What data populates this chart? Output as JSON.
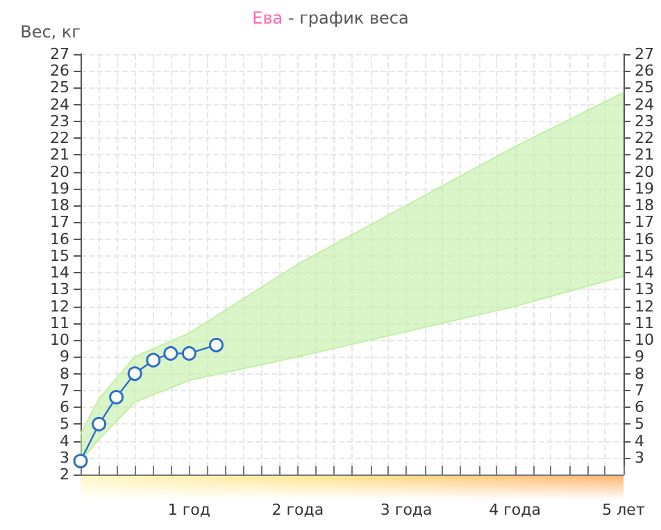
{
  "chart_data": {
    "type": "line",
    "title": "Ева - график веса",
    "ylabel": "Вес, кг",
    "xlim": [
      0,
      5
    ],
    "xticks": [
      {
        "value": 0,
        "label": null
      },
      {
        "value": 0.17,
        "label": null
      },
      {
        "value": 0.33,
        "label": null
      },
      {
        "value": 0.5,
        "label": null
      },
      {
        "value": 0.67,
        "label": null
      },
      {
        "value": 0.83,
        "label": null
      },
      {
        "value": 1,
        "label": "1 год"
      },
      {
        "value": 1.17,
        "label": null
      },
      {
        "value": 1.33,
        "label": null
      },
      {
        "value": 1.5,
        "label": null
      },
      {
        "value": 1.67,
        "label": null
      },
      {
        "value": 1.83,
        "label": null
      },
      {
        "value": 2,
        "label": "2 года"
      },
      {
        "value": 2.17,
        "label": null
      },
      {
        "value": 2.33,
        "label": null
      },
      {
        "value": 2.5,
        "label": null
      },
      {
        "value": 2.67,
        "label": null
      },
      {
        "value": 2.83,
        "label": null
      },
      {
        "value": 3,
        "label": "3 года"
      },
      {
        "value": 3.17,
        "label": null
      },
      {
        "value": 3.33,
        "label": null
      },
      {
        "value": 3.5,
        "label": null
      },
      {
        "value": 3.67,
        "label": null
      },
      {
        "value": 3.83,
        "label": null
      },
      {
        "value": 4,
        "label": "4 года"
      },
      {
        "value": 4.17,
        "label": null
      },
      {
        "value": 4.33,
        "label": null
      },
      {
        "value": 4.5,
        "label": null
      },
      {
        "value": 4.67,
        "label": null
      },
      {
        "value": 4.83,
        "label": null
      },
      {
        "value": 5,
        "label": "5 лет"
      }
    ],
    "ylim": [
      2,
      27
    ],
    "yticks": [
      2,
      3,
      4,
      5,
      6,
      7,
      8,
      9,
      10,
      11,
      12,
      13,
      14,
      15,
      16,
      17,
      18,
      19,
      20,
      21,
      22,
      23,
      24,
      25,
      26,
      27
    ],
    "y2lim": [
      2,
      27
    ],
    "y2ticks": [
      3,
      4,
      5,
      6,
      7,
      8,
      9,
      10,
      11,
      12,
      13,
      14,
      15,
      16,
      17,
      18,
      19,
      20,
      21,
      22,
      23,
      24,
      25,
      26,
      27
    ],
    "grid": true,
    "line_style": "solid",
    "series": [
      {
        "type": "area",
        "color": "#c2efa3",
        "x": [
          0,
          0.17,
          0.5,
          1,
          2,
          3,
          4,
          5
        ],
        "values": [
          4.4,
          6.5,
          9.0,
          10.4,
          14.5,
          18.0,
          21.5,
          24.7
        ]
      },
      {
        "type": "line",
        "color": "#c2efa3",
        "marker": "none",
        "x": [
          0,
          0.17,
          0.5,
          1,
          2,
          3,
          4,
          5
        ],
        "values": [
          2.8,
          4.1,
          6.3,
          7.6,
          9.0,
          10.5,
          12.0,
          13.8
        ]
      },
      {
        "color": "#2a6fc9",
        "marker": "circle",
        "x": [
          0,
          0.17,
          0.33,
          0.5,
          0.67,
          0.83,
          1,
          1.25
        ],
        "values": [
          2.8,
          5.0,
          6.6,
          8.0,
          8.8,
          9.2,
          9.2,
          9.7
        ]
      }
    ]
  }
}
